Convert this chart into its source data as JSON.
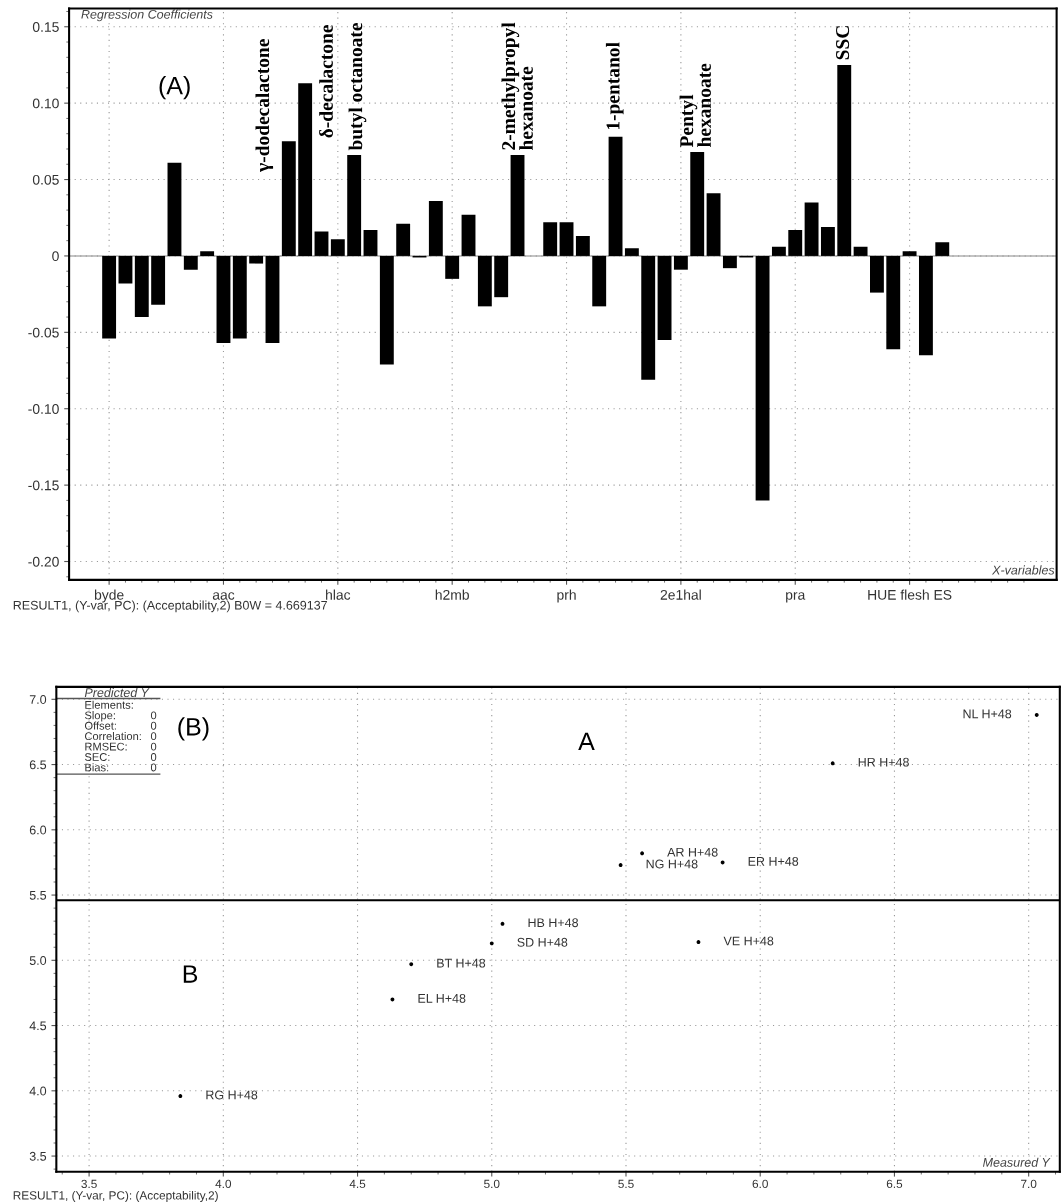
{
  "chart_data": [
    {
      "type": "bar",
      "ylabel": "Regression Coefficients",
      "xlabel": "X-variables",
      "categories": [
        "byde",
        null,
        null,
        null,
        null,
        null,
        null,
        "aac",
        null,
        null,
        null,
        null,
        null,
        null,
        "hlac",
        null,
        null,
        null,
        null,
        null,
        null,
        "h2mb",
        null,
        null,
        null,
        null,
        null,
        null,
        "prh",
        null,
        null,
        null,
        null,
        null,
        null,
        "2e1hal",
        null,
        null,
        null,
        null,
        null,
        null,
        "pra",
        null,
        null,
        null,
        null,
        null,
        null,
        "HUE flesh ES",
        null,
        null,
        null,
        null,
        null,
        null,
        null
      ],
      "values": [
        -0.054,
        -0.018,
        -0.04,
        -0.032,
        0.061,
        -0.009,
        0.003,
        -0.057,
        -0.054,
        -0.005,
        -0.057,
        0.075,
        0.113,
        0.016,
        0.011,
        0.066,
        0.017,
        -0.071,
        0.021,
        -0.001,
        0.036,
        -0.015,
        0.027,
        -0.033,
        -0.027,
        0.066,
        null,
        0.022,
        0.022,
        0.013,
        -0.033,
        0.078,
        0.005,
        -0.081,
        -0.055,
        -0.009,
        0.068,
        0.041,
        -0.008,
        -0.001,
        -0.16,
        0.006,
        0.017,
        0.035,
        0.019,
        0.125,
        0.006,
        -0.024,
        -0.061,
        0.003,
        -0.065,
        0.009,
        null,
        null,
        null,
        null,
        null
      ],
      "color": "#000000",
      "ylim": [
        -0.212,
        0.162
      ],
      "yticks": [
        {
          "value": -0.2,
          "label": "-0.20"
        },
        -0.15,
        {
          "value": -0.1,
          "label": "-0.10"
        },
        -0.05,
        0,
        0.05,
        {
          "value": 0.1,
          "label": "0.10"
        },
        0.15
      ],
      "grid": true,
      "legend": false,
      "annotations": [
        "(A)",
        "γ-dodecalactone",
        "δ-decalactone",
        "butyl octanoate",
        "2-methylpropyl\nhexanoate",
        "1-pentanol",
        "Pentyl\nhexanoate",
        "SSC",
        "RESULT1, (Y-var, PC): (Acceptability,2) B0W = 4.669137"
      ]
    },
    {
      "type": "scatter",
      "ylabel": "Predicted Y",
      "xlabel": "Measured Y",
      "x": [
        3.84,
        4.7,
        4.63,
        5.04,
        5.0,
        5.48,
        5.56,
        5.86,
        5.77,
        6.27,
        7.03
      ],
      "values": [
        3.96,
        4.97,
        4.7,
        5.28,
        5.13,
        5.73,
        5.82,
        5.75,
        5.14,
        6.51,
        6.88
      ],
      "color": "#000000",
      "marker": "circle",
      "xlim": [
        3.378,
        7.116
      ],
      "ylim": [
        3.38,
        7.095
      ],
      "xticks": [
        3.5,
        {
          "value": 4,
          "label": "4.0"
        },
        4.5,
        {
          "value": 5,
          "label": "5.0"
        },
        5.5,
        {
          "value": 6,
          "label": "6.0"
        },
        6.5,
        {
          "value": 7,
          "label": "7.0"
        }
      ],
      "yticks": [
        3.5,
        {
          "value": 4,
          "label": "4.0"
        },
        4.5,
        {
          "value": 5,
          "label": "5.0"
        },
        5.5,
        {
          "value": 6,
          "label": "6.0"
        },
        6.5,
        {
          "value": 7,
          "label": "7.0"
        }
      ],
      "grid": true,
      "legend": false,
      "ref_lines": [
        {
          "axis": "y",
          "value": 5.46,
          "color": "#000000",
          "line_style": "solid"
        }
      ],
      "annotations": [
        {
          "text": "RG H+48",
          "x": 3.84,
          "y": 3.96
        },
        {
          "text": "BT H+48",
          "x": 4.7,
          "y": 4.97
        },
        {
          "text": "EL H+48",
          "x": 4.63,
          "y": 4.7
        },
        {
          "text": "HB H+48",
          "x": 5.04,
          "y": 5.28
        },
        {
          "text": "SD H+48",
          "x": 5.0,
          "y": 5.13
        },
        {
          "text": "NG H+48",
          "x": 5.48,
          "y": 5.73
        },
        {
          "text": "AR H+48",
          "x": 5.56,
          "y": 5.82
        },
        {
          "text": "ER H+48",
          "x": 5.86,
          "y": 5.75
        },
        {
          "text": "VE H+48",
          "x": 5.77,
          "y": 5.14
        },
        {
          "text": "HR H+48",
          "x": 6.27,
          "y": 6.51
        },
        {
          "text": "NL H+48",
          "x": 7.03,
          "y": 6.88
        },
        "(B)",
        "A",
        "B",
        "Elements:",
        "Slope:",
        "0",
        "Offset:",
        "0",
        "Correlation:",
        "0",
        "RMSEC:",
        "0",
        "SEC:",
        "0",
        "Bias:",
        "0",
        "RESULT1, (Y-var, PC): (Acceptability,2)"
      ]
    }
  ]
}
